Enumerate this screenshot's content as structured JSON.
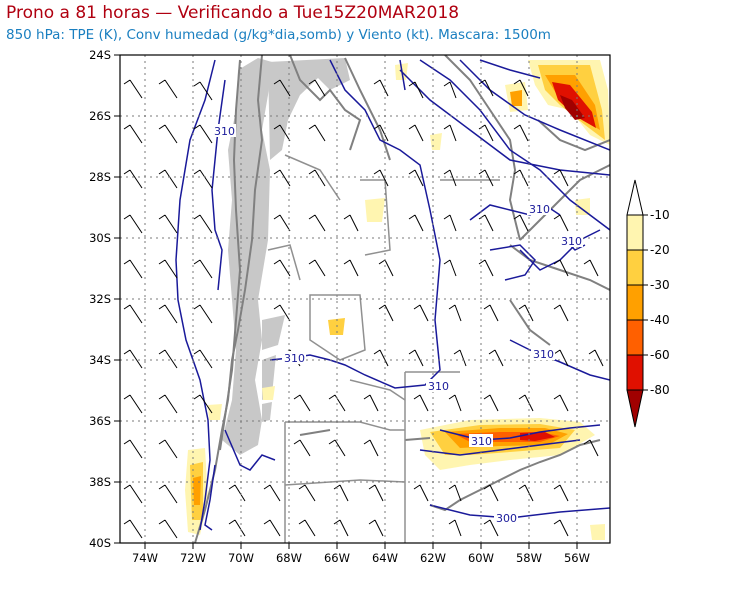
{
  "header": {
    "title": "Prono a 81 horas — Verificando a Tue15Z20MAR2018",
    "subtitle": "850 hPa: TPE (K), Conv humedad (g/kg*dia,somb) y Viento (kt). Mascara: 1500m"
  },
  "axes": {
    "lon_labels": [
      "74W",
      "72W",
      "70W",
      "68W",
      "66W",
      "64W",
      "62W",
      "60W",
      "58W",
      "56W"
    ],
    "lat_labels": [
      "24S",
      "26S",
      "28S",
      "30S",
      "32S",
      "34S",
      "36S",
      "38S",
      "40S"
    ],
    "lon_range": [
      -75.5,
      -55
    ],
    "lat_range": [
      -40,
      -24
    ]
  },
  "colorbar": {
    "labels": [
      "-10",
      "-20",
      "-30",
      "-40",
      "-60",
      "-80"
    ],
    "colors": [
      "#ffffff",
      "#fff5b0",
      "#ffd040",
      "#ffa000",
      "#ff6000",
      "#e01000",
      "#a00000"
    ]
  },
  "contour_labels": [
    "310",
    "310",
    "310",
    "310",
    "310",
    "310",
    "310",
    "300"
  ],
  "colors": {
    "title": "#b00010",
    "subtitle": "#1a7fc0",
    "contour": "#1a1a9a",
    "mask": "#c8c8c8",
    "border": "#808080"
  }
}
